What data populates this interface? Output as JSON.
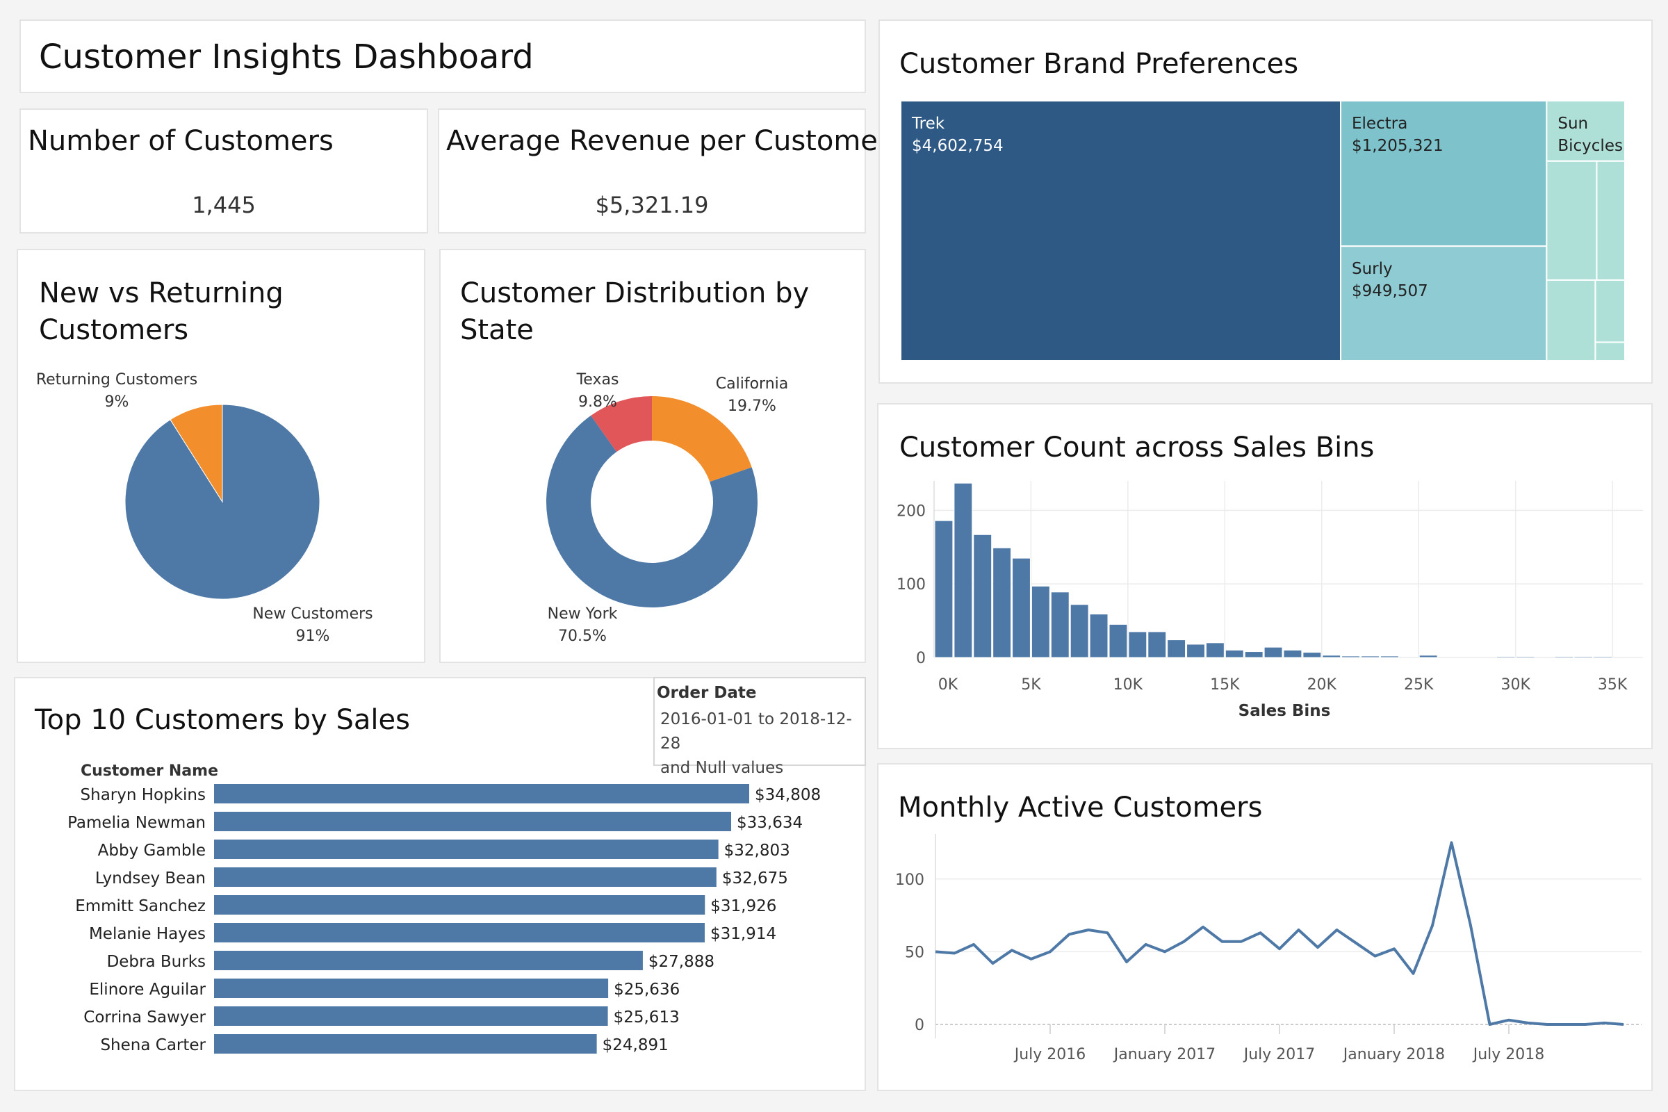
{
  "dashboard": {
    "title": "Customer Insights Dashboard",
    "kpis": {
      "customers_label": "Number of Customers",
      "customers_value": "1,445",
      "revenue_label": "Average Revenue per Customer",
      "revenue_value": "$5,321.19"
    },
    "pie_title": [
      "New vs Returning",
      "Customers"
    ],
    "donut_title": [
      "Customer Distribution by",
      "State"
    ],
    "treemap_title": "Customer Brand Preferences",
    "hist_title": "Customer Count across Sales Bins",
    "top10_title": "Top 10 Customers by Sales",
    "line_title": "Monthly Active Customers",
    "filter": {
      "label": "Order Date",
      "range": "2016-01-01 to 2018-12-28",
      "nulls": "and Null values"
    },
    "colors": {
      "primary": "#4e79a7",
      "orange": "#f28e2b",
      "red": "#e15759",
      "trek": "#2e5985",
      "teal_mid": "#7ec2cb",
      "teal_light": "#8fcbd3",
      "teal_pale": "#afe0d8"
    }
  },
  "chart_data": [
    {
      "id": "new_vs_returning",
      "type": "pie",
      "labels": [
        "New Customers",
        "Returning Customers"
      ],
      "values": [
        91,
        9
      ],
      "value_labels": [
        "91%",
        "9%"
      ]
    },
    {
      "id": "state_distribution",
      "type": "pie",
      "labels": [
        "New York",
        "California",
        "Texas"
      ],
      "values": [
        70.5,
        19.7,
        9.8
      ],
      "value_labels": [
        "70.5%",
        "19.7%",
        "9.8%"
      ]
    },
    {
      "id": "brand_preferences",
      "type": "treemap",
      "labels": [
        "Trek",
        "Electra",
        "Surly",
        "Sun Bicycles",
        "",
        "",
        "",
        "",
        ""
      ],
      "values": [
        4602754,
        1205321,
        949507,
        190000,
        240000,
        135000,
        158000,
        74000,
        22000
      ],
      "value_labels": [
        "$4,602,754",
        "$1,205,321",
        "$949,507",
        "",
        "",
        "",
        "",
        "",
        ""
      ]
    },
    {
      "id": "sales_bins",
      "type": "bar",
      "xlabel": "Sales Bins",
      "x_ticks": [
        "0K",
        "5K",
        "10K",
        "15K",
        "20K",
        "25K",
        "30K",
        "35K"
      ],
      "y_ticks": [
        "0",
        "100",
        "200"
      ],
      "bin_width": 1000,
      "bin_starts": [
        0,
        1000,
        2000,
        3000,
        4000,
        5000,
        6000,
        7000,
        8000,
        9000,
        10000,
        11000,
        12000,
        13000,
        14000,
        15000,
        16000,
        17000,
        18000,
        19000,
        20000,
        21000,
        22000,
        23000,
        24000,
        25000,
        26000,
        27000,
        28000,
        29000,
        30000,
        31000,
        32000,
        33000,
        34000
      ],
      "values": [
        186,
        237,
        167,
        149,
        135,
        97,
        89,
        72,
        59,
        45,
        35,
        35,
        24,
        18,
        20,
        10,
        8,
        14,
        10,
        7,
        3,
        2,
        2,
        2,
        0,
        3,
        0,
        0,
        0,
        1,
        1,
        0,
        1,
        1,
        1
      ],
      "ylim": [
        0,
        240
      ],
      "xlim": [
        0,
        36000
      ]
    },
    {
      "id": "top10_customers",
      "type": "bar",
      "orientation": "horizontal",
      "ylabel": "Customer Name",
      "categories": [
        "Sharyn Hopkins",
        "Pamelia Newman",
        "Abby Gamble",
        "Lyndsey Bean",
        "Emmitt Sanchez",
        "Melanie Hayes",
        "Debra Burks",
        "Elinore Aguilar",
        "Corrina Sawyer",
        "Shena Carter"
      ],
      "values": [
        34808,
        33634,
        32803,
        32675,
        31926,
        31914,
        27888,
        25636,
        25613,
        24891
      ],
      "value_labels": [
        "$34,808",
        "$33,634",
        "$32,803",
        "$32,675",
        "$31,926",
        "$31,914",
        "$27,888",
        "$25,636",
        "$25,613",
        "$24,891"
      ]
    },
    {
      "id": "monthly_active",
      "type": "line",
      "x_tick_labels": [
        "July 2016",
        "January 2017",
        "July 2017",
        "January 2018",
        "July 2018"
      ],
      "x_tick_months": [
        6,
        12,
        18,
        24,
        30
      ],
      "x_months": [
        0,
        1,
        2,
        3,
        4,
        5,
        6,
        7,
        8,
        9,
        10,
        11,
        12,
        13,
        14,
        15,
        16,
        17,
        18,
        19,
        20,
        21,
        22,
        23,
        24,
        25,
        26,
        27,
        28,
        29,
        30,
        31,
        32,
        33,
        34,
        35,
        36
      ],
      "values": [
        50,
        49,
        55,
        42,
        51,
        45,
        50,
        62,
        65,
        63,
        43,
        55,
        50,
        57,
        67,
        57,
        57,
        63,
        52,
        65,
        53,
        65,
        56,
        47,
        52,
        35,
        68,
        125,
        68,
        0,
        3,
        1,
        0,
        0,
        0,
        1,
        0
      ],
      "y_ticks": [
        "0",
        "50",
        "100"
      ],
      "ylim": [
        0,
        130
      ]
    }
  ]
}
